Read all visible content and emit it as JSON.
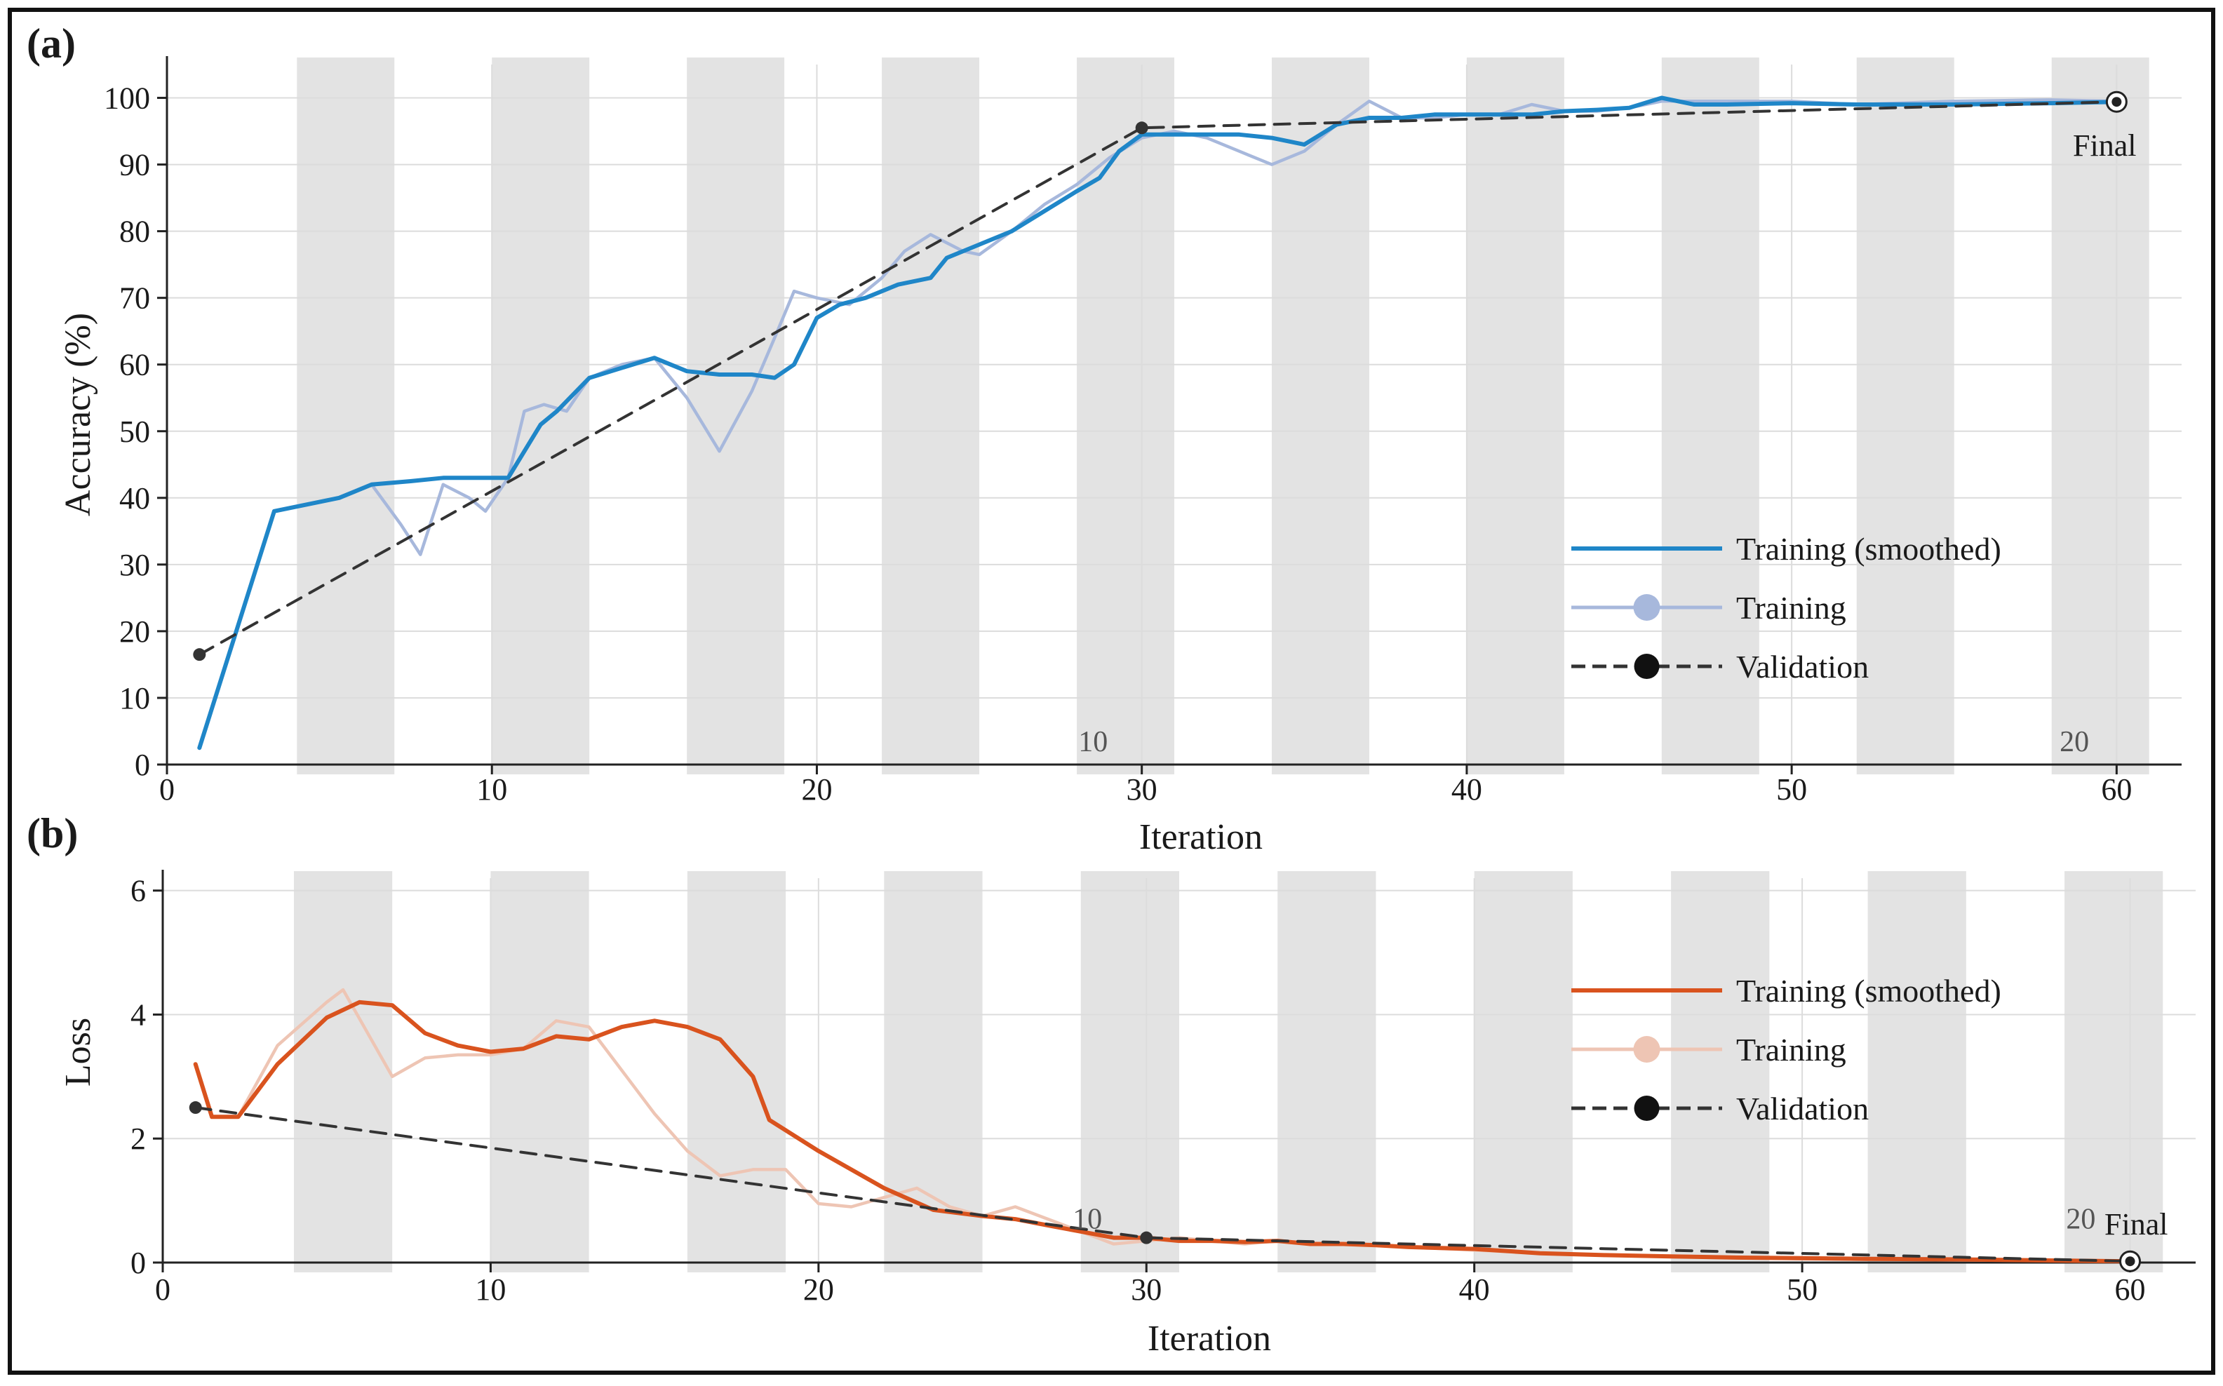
{
  "colors": {
    "accuracy_smoothed": "#1f86c8",
    "accuracy_training": "#a7b8dc",
    "loss_smoothed": "#d9531e",
    "loss_training": "#eec5b4",
    "validation": "#333333",
    "epoch_band": "#e3e3e3",
    "grid": "#dcdcdc"
  },
  "chart_data": [
    {
      "type": "line",
      "panel_label": "(a)",
      "xlabel": "Iteration",
      "ylabel": "Accuracy (%)",
      "xlim": [
        0,
        62
      ],
      "ylim": [
        0,
        105
      ],
      "xticks": [
        0,
        10,
        20,
        30,
        40,
        50,
        60
      ],
      "yticks": [
        0,
        10,
        20,
        30,
        40,
        50,
        60,
        70,
        80,
        90,
        100
      ],
      "grid": true,
      "legend_position": "lower-right",
      "epoch_bands": [
        [
          4,
          7
        ],
        [
          10,
          13
        ],
        [
          16,
          19
        ],
        [
          22,
          25
        ],
        [
          28,
          31
        ],
        [
          34,
          37
        ],
        [
          40,
          43
        ],
        [
          46,
          49
        ],
        [
          52,
          55
        ],
        [
          58,
          61
        ]
      ],
      "epoch_annotations": [
        {
          "label": "10",
          "x": 28.5,
          "y": 2
        },
        {
          "label": "20",
          "x": 58.7,
          "y": 2
        }
      ],
      "final_marker": {
        "x": 60,
        "y": 99.4,
        "label": "Final"
      },
      "series": [
        {
          "name": "Training (smoothed)",
          "style": "solid",
          "x": [
            1,
            3.3,
            5.3,
            6.3,
            7.5,
            8.5,
            9.5,
            10.5,
            11,
            11.5,
            12,
            13,
            15,
            16,
            17,
            18,
            18.7,
            19.3,
            20,
            20.7,
            21.5,
            22.5,
            23.5,
            24,
            25,
            26,
            27,
            28,
            28.7,
            29.3,
            30,
            31,
            32,
            33,
            34,
            35,
            36,
            37,
            38,
            39,
            40,
            41,
            42,
            43,
            44,
            45,
            46,
            47,
            48,
            50,
            52,
            55,
            58,
            60
          ],
          "values": [
            2.5,
            38,
            40,
            42,
            42.5,
            43,
            43,
            43,
            47,
            51,
            53,
            58,
            61,
            59,
            58.5,
            58.5,
            58,
            60,
            67,
            69,
            70,
            72,
            73,
            76,
            78,
            80,
            83,
            86,
            88,
            92,
            94.5,
            94.5,
            94.5,
            94.5,
            94,
            93,
            96,
            97,
            97,
            97.5,
            97.5,
            97.5,
            97.5,
            98,
            98.2,
            98.5,
            100,
            99,
            99,
            99.2,
            99,
            99,
            99.2,
            99.4
          ]
        },
        {
          "name": "Training",
          "style": "solid",
          "x": [
            1,
            3.3,
            5.3,
            6.3,
            7.2,
            7.8,
            8.5,
            9.3,
            9.8,
            10.5,
            11,
            11.6,
            12.3,
            13,
            14,
            15,
            16,
            17,
            18,
            18.7,
            19.3,
            20,
            21,
            22,
            22.7,
            23.5,
            24.5,
            25,
            26,
            27,
            28,
            29,
            30,
            31,
            32,
            33,
            34,
            35,
            36,
            37,
            38,
            39,
            40,
            41,
            42,
            43,
            44,
            45,
            46,
            47,
            48,
            50,
            52,
            55,
            58,
            60
          ],
          "values": [
            2.5,
            38,
            40,
            42,
            36,
            31.5,
            42,
            40,
            38,
            43,
            53,
            54,
            53,
            58,
            60,
            61,
            55,
            47,
            56,
            64,
            71,
            70,
            69,
            73,
            77,
            79.5,
            77,
            76.5,
            80,
            84,
            87,
            91,
            94,
            95,
            94,
            92,
            90,
            92,
            96,
            99.5,
            97,
            97,
            97.5,
            97.5,
            99,
            98,
            98,
            98.5,
            99.5,
            99.5,
            99.5,
            99.5,
            99,
            99.5,
            99.7,
            99.5
          ]
        },
        {
          "name": "Validation",
          "style": "dashed",
          "x": [
            1,
            30,
            60
          ],
          "values": [
            16.5,
            95.5,
            99.4
          ]
        }
      ]
    },
    {
      "type": "line",
      "panel_label": "(b)",
      "xlabel": "Iteration",
      "ylabel": "Loss",
      "xlim": [
        0,
        62
      ],
      "ylim": [
        0,
        6.2
      ],
      "xticks": [
        0,
        10,
        20,
        30,
        40,
        50,
        60
      ],
      "yticks": [
        0,
        2,
        4,
        6
      ],
      "grid": true,
      "legend_position": "upper-right",
      "epoch_bands": [
        [
          4,
          7
        ],
        [
          10,
          13
        ],
        [
          16,
          19
        ],
        [
          22,
          25
        ],
        [
          28,
          31
        ],
        [
          34,
          37
        ],
        [
          40,
          43
        ],
        [
          46,
          49
        ],
        [
          52,
          55
        ],
        [
          58,
          61
        ]
      ],
      "epoch_annotations": [
        {
          "label": "10",
          "x": 28.2,
          "y": 0.55
        },
        {
          "label": "20",
          "x": 58.5,
          "y": 0.55
        }
      ],
      "final_marker": {
        "x": 60,
        "y": 0.02,
        "label": "Final"
      },
      "series": [
        {
          "name": "Training (smoothed)",
          "style": "solid",
          "x": [
            1,
            1.5,
            2.3,
            3.5,
            5,
            6,
            7,
            8,
            9,
            10,
            11,
            12,
            13,
            14,
            15,
            16,
            17,
            18,
            18.5,
            20,
            22,
            23.5,
            25,
            26,
            27,
            28,
            29,
            30,
            31,
            32,
            33,
            34,
            35,
            36,
            37,
            38,
            40,
            42,
            44,
            46,
            48,
            50,
            52,
            55,
            58,
            60
          ],
          "values": [
            3.2,
            2.35,
            2.35,
            3.2,
            3.95,
            4.2,
            4.15,
            3.7,
            3.5,
            3.4,
            3.45,
            3.65,
            3.6,
            3.8,
            3.9,
            3.8,
            3.6,
            3.0,
            2.3,
            1.8,
            1.2,
            0.85,
            0.75,
            0.7,
            0.6,
            0.5,
            0.4,
            0.4,
            0.35,
            0.35,
            0.33,
            0.35,
            0.3,
            0.3,
            0.28,
            0.25,
            0.22,
            0.15,
            0.12,
            0.1,
            0.08,
            0.07,
            0.06,
            0.05,
            0.03,
            0.02
          ]
        },
        {
          "name": "Training",
          "style": "solid",
          "x": [
            1,
            1.5,
            2.3,
            3.5,
            5,
            5.5,
            7,
            8,
            9,
            10,
            11,
            12,
            13,
            14,
            15,
            16,
            17,
            18,
            19,
            20,
            21,
            22,
            23,
            24,
            25,
            26,
            27,
            28,
            29,
            30,
            31,
            32,
            33,
            34,
            35,
            36,
            38,
            40,
            42,
            44,
            46,
            48,
            50,
            52,
            55,
            58,
            60
          ],
          "values": [
            3.2,
            2.35,
            2.35,
            3.5,
            4.2,
            4.4,
            3.0,
            3.3,
            3.35,
            3.35,
            3.45,
            3.9,
            3.8,
            3.1,
            2.4,
            1.8,
            1.4,
            1.5,
            1.5,
            0.95,
            0.9,
            1.05,
            1.2,
            0.9,
            0.75,
            0.9,
            0.7,
            0.5,
            0.3,
            0.35,
            0.4,
            0.35,
            0.3,
            0.35,
            0.3,
            0.3,
            0.25,
            0.2,
            0.15,
            0.12,
            0.1,
            0.08,
            0.06,
            0.05,
            0.04,
            0.03,
            0.02
          ]
        },
        {
          "name": "Validation",
          "style": "dashed",
          "x": [
            1,
            30,
            60
          ],
          "values": [
            2.5,
            0.4,
            0.02
          ]
        }
      ]
    }
  ]
}
